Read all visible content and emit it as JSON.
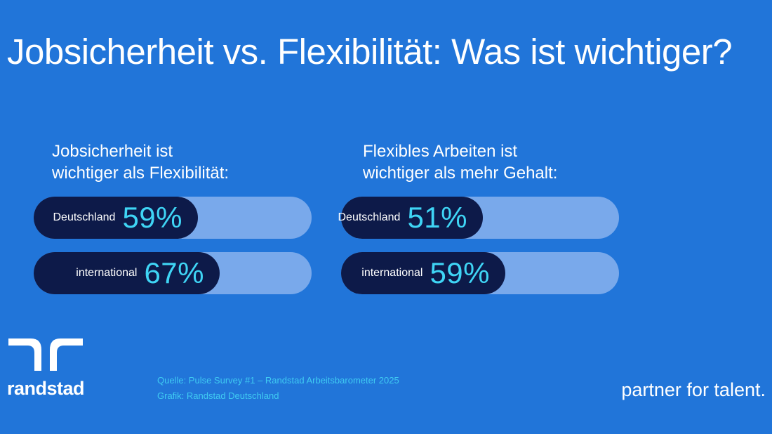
{
  "title": "Jobsicherheit vs. Flexibilität: Was ist wichtiger?",
  "chart_data": [
    {
      "type": "bar",
      "orientation": "horizontal",
      "title": "Jobsicherheit ist\nwichtiger als Flexibilität:",
      "categories": [
        "Deutschland",
        "international"
      ],
      "values": [
        59,
        67
      ],
      "value_labels": [
        "59%",
        "67%"
      ],
      "xlim": [
        0,
        100
      ],
      "colors": {
        "fill": "#0d1a49",
        "track": "#79a9eb",
        "value_text": "#3fd5f5"
      }
    },
    {
      "type": "bar",
      "orientation": "horizontal",
      "title": "Flexibles Arbeiten ist\nwichtiger als mehr Gehalt:",
      "categories": [
        "Deutschland",
        "international"
      ],
      "values": [
        51,
        59
      ],
      "value_labels": [
        "51%",
        "59%"
      ],
      "xlim": [
        0,
        100
      ],
      "colors": {
        "fill": "#0d1a49",
        "track": "#79a9eb",
        "value_text": "#3fd5f5"
      }
    }
  ],
  "footer": {
    "brand": "randstad",
    "brand_icon": "randstad-logo-icon",
    "source_line": "Quelle: Pulse Survey #1 – Randstad Arbeitsbarometer 2025",
    "graphic_line": "Grafik: Randstad Deutschland",
    "tagline": "partner for talent."
  },
  "colors": {
    "background": "#2175d9",
    "accent": "#3fd5f5"
  }
}
